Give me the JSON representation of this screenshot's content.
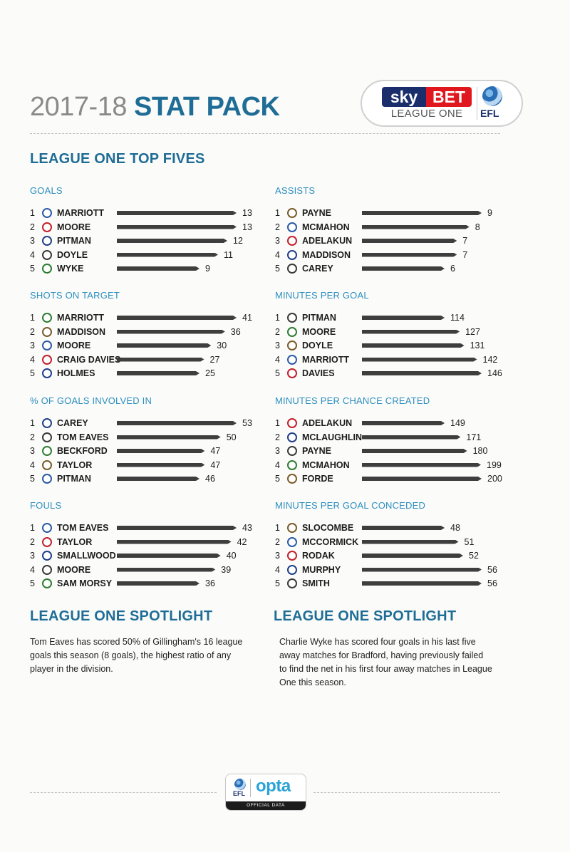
{
  "header": {
    "season": "2017-18",
    "title": "STAT PACK",
    "sponsor": {
      "sky": "sky",
      "bet": "BET",
      "league": "LEAGUE ONE",
      "efl": "EFL"
    }
  },
  "top_fives": {
    "heading": "LEAGUE ONE TOP FIVES",
    "categories": [
      {
        "title": "GOALS",
        "rows": [
          {
            "rank": "1",
            "name": "MARRIOTT",
            "value": 13
          },
          {
            "rank": "2",
            "name": "MOORE",
            "value": 13
          },
          {
            "rank": "3",
            "name": "PITMAN",
            "value": 12
          },
          {
            "rank": "4",
            "name": "DOYLE",
            "value": 11
          },
          {
            "rank": "5",
            "name": "WYKE",
            "value": 9
          }
        ]
      },
      {
        "title": "ASSISTS",
        "rows": [
          {
            "rank": "1",
            "name": "PAYNE",
            "value": 9
          },
          {
            "rank": "2",
            "name": "MCMAHON",
            "value": 8
          },
          {
            "rank": "3",
            "name": "ADELAKUN",
            "value": 7
          },
          {
            "rank": "4",
            "name": "MADDISON",
            "value": 7
          },
          {
            "rank": "5",
            "name": "CAREY",
            "value": 6
          }
        ]
      },
      {
        "title": "SHOTS ON TARGET",
        "rows": [
          {
            "rank": "1",
            "name": "MARRIOTT",
            "value": 41
          },
          {
            "rank": "2",
            "name": "MADDISON",
            "value": 36
          },
          {
            "rank": "3",
            "name": "MOORE",
            "value": 30
          },
          {
            "rank": "4",
            "name": "CRAIG DAVIES",
            "value": 27
          },
          {
            "rank": "5",
            "name": "HOLMES",
            "value": 25
          }
        ]
      },
      {
        "title": "MINUTES PER GOAL",
        "rows": [
          {
            "rank": "1",
            "name": "PITMAN",
            "value": 114
          },
          {
            "rank": "2",
            "name": "MOORE",
            "value": 127
          },
          {
            "rank": "3",
            "name": "DOYLE",
            "value": 131
          },
          {
            "rank": "4",
            "name": "MARRIOTT",
            "value": 142
          },
          {
            "rank": "5",
            "name": "DAVIES",
            "value": 146
          }
        ]
      },
      {
        "title": "% OF GOALS INVOLVED IN",
        "rows": [
          {
            "rank": "1",
            "name": "CAREY",
            "value": 53
          },
          {
            "rank": "2",
            "name": "TOM EAVES",
            "value": 50
          },
          {
            "rank": "3",
            "name": "BECKFORD",
            "value": 47
          },
          {
            "rank": "4",
            "name": "TAYLOR",
            "value": 47
          },
          {
            "rank": "5",
            "name": "PITMAN",
            "value": 46
          }
        ]
      },
      {
        "title": "MINUTES PER CHANCE CREATED",
        "rows": [
          {
            "rank": "1",
            "name": "ADELAKUN",
            "value": 149
          },
          {
            "rank": "2",
            "name": "MCLAUGHLIN",
            "value": 171
          },
          {
            "rank": "3",
            "name": "PAYNE",
            "value": 180
          },
          {
            "rank": "4",
            "name": "MCMAHON",
            "value": 199
          },
          {
            "rank": "5",
            "name": "FORDE",
            "value": 200
          }
        ]
      },
      {
        "title": "FOULS",
        "rows": [
          {
            "rank": "1",
            "name": "TOM EAVES",
            "value": 43
          },
          {
            "rank": "2",
            "name": "TAYLOR",
            "value": 42
          },
          {
            "rank": "3",
            "name": "SMALLWOOD",
            "value": 40
          },
          {
            "rank": "4",
            "name": "MOORE",
            "value": 39
          },
          {
            "rank": "5",
            "name": "SAM MORSY",
            "value": 36
          }
        ]
      },
      {
        "title": "MINUTES PER GOAL CONCEDED",
        "rows": [
          {
            "rank": "1",
            "name": "SLOCOMBE",
            "value": 48
          },
          {
            "rank": "2",
            "name": "MCCORMICK",
            "value": 51
          },
          {
            "rank": "3",
            "name": "RODAK",
            "value": 52
          },
          {
            "rank": "4",
            "name": "MURPHY",
            "value": 56
          },
          {
            "rank": "5",
            "name": "SMITH",
            "value": 56
          }
        ]
      }
    ]
  },
  "spotlights": [
    {
      "heading": "LEAGUE ONE SPOTLIGHT",
      "text": "Tom Eaves has scored 50% of Gillingham's 16 league goals this season (8 goals), the highest ratio of any player in the division."
    },
    {
      "heading": "LEAGUE ONE SPOTLIGHT",
      "text": "Charlie Wyke has scored four goals in his last five away matches for Bradford, having previously failed to find the net in his first four away matches in League One this season."
    }
  ],
  "footer": {
    "efl": "EFL",
    "brand": "opta",
    "official": "OFFICIAL DATA"
  },
  "colors": {
    "accent": "#1f6d96",
    "category": "#2d8fc0",
    "bar": "#3e3e3e"
  }
}
